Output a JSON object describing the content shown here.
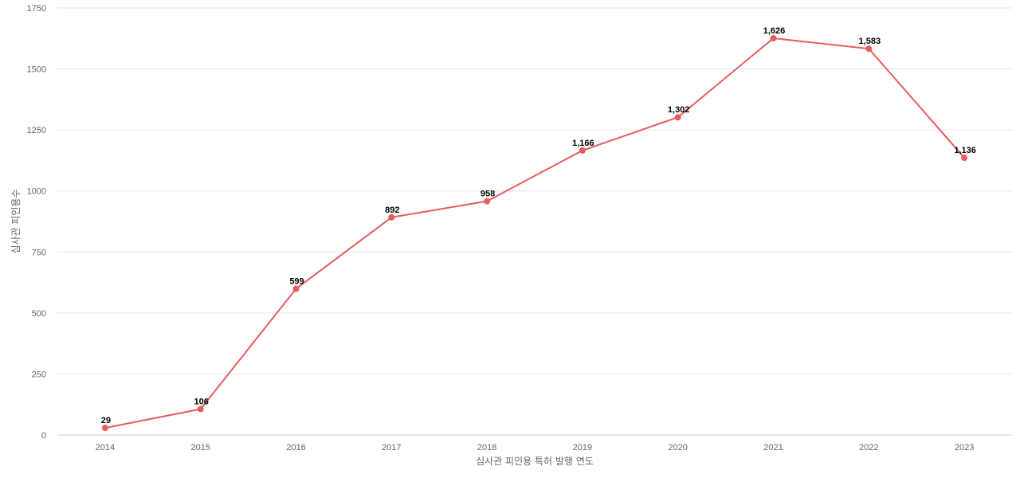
{
  "chart_data": {
    "type": "line",
    "xlabel": "심사관 피인용 특허 발행 연도",
    "ylabel": "심사관 피인용수",
    "categories": [
      "2014",
      "2015",
      "2016",
      "2017",
      "2018",
      "2019",
      "2020",
      "2021",
      "2022",
      "2023"
    ],
    "series": [
      {
        "values": [
          29,
          106,
          599,
          892,
          958,
          1166,
          1302,
          1626,
          1583,
          1136
        ],
        "data_labels": [
          "29",
          "106",
          "599",
          "892",
          "958",
          "1,166",
          "1,302",
          "1,626",
          "1,583",
          "1,136"
        ]
      }
    ],
    "ylim": [
      0,
      1750
    ],
    "yticks": [
      "0",
      "250",
      "500",
      "750",
      "1000",
      "1250",
      "1500",
      "1750"
    ],
    "grid": true,
    "legend": "none",
    "colors": {
      "line": "#e85c5c",
      "grid": "#e6e6e6",
      "axis": "#cccccc",
      "tick_text": "#666666"
    }
  }
}
